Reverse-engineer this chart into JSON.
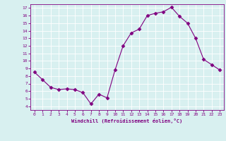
{
  "x": [
    0,
    1,
    2,
    3,
    4,
    5,
    6,
    7,
    8,
    9,
    10,
    11,
    12,
    13,
    14,
    15,
    16,
    17,
    18,
    19,
    20,
    21,
    22,
    23
  ],
  "y": [
    8.5,
    7.5,
    6.5,
    6.2,
    6.3,
    6.2,
    5.8,
    4.3,
    5.6,
    5.1,
    8.8,
    12.0,
    13.7,
    14.2,
    16.0,
    16.3,
    16.5,
    17.1,
    15.9,
    15.0,
    13.0,
    10.2,
    9.5,
    8.8
  ],
  "line_color": "#800080",
  "marker": "D",
  "marker_size": 2.5,
  "bg_color": "#d8f0f0",
  "grid_color": "#ffffff",
  "xlabel": "Windchill (Refroidissement éolien,°C)",
  "xlabel_color": "#800080",
  "tick_color": "#800080",
  "ylim": [
    3.5,
    17.5
  ],
  "xlim": [
    -0.5,
    23.5
  ],
  "yticks": [
    4,
    5,
    6,
    7,
    8,
    9,
    10,
    11,
    12,
    13,
    14,
    15,
    16,
    17
  ],
  "xticks": [
    0,
    1,
    2,
    3,
    4,
    5,
    6,
    7,
    8,
    9,
    10,
    11,
    12,
    13,
    14,
    15,
    16,
    17,
    18,
    19,
    20,
    21,
    22,
    23
  ]
}
